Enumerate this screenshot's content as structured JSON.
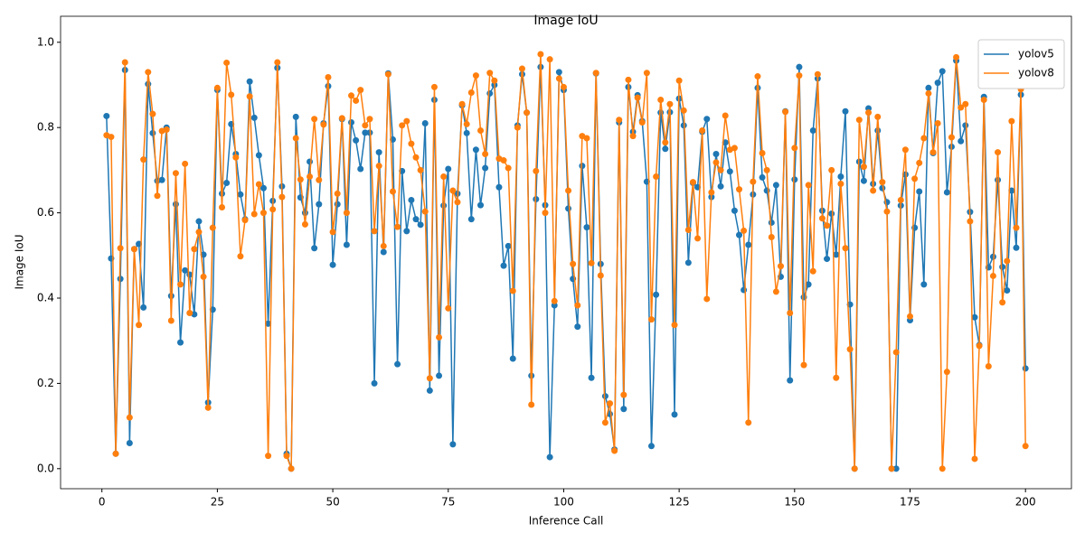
{
  "chart_data": {
    "type": "line",
    "title": "Image IoU",
    "x_label": "Inference Call",
    "y_label": "Image IoU",
    "x": [
      1,
      2,
      3,
      4,
      5,
      6,
      7,
      8,
      9,
      10,
      11,
      12,
      13,
      14,
      15,
      16,
      17,
      18,
      19,
      20,
      21,
      22,
      23,
      24,
      25,
      26,
      27,
      28,
      29,
      30,
      31,
      32,
      33,
      34,
      35,
      36,
      37,
      38,
      39,
      40,
      41,
      42,
      43,
      44,
      45,
      46,
      47,
      48,
      49,
      50,
      51,
      52,
      53,
      54,
      55,
      56,
      57,
      58,
      59,
      60,
      61,
      62,
      63,
      64,
      65,
      66,
      67,
      68,
      69,
      70,
      71,
      72,
      73,
      74,
      75,
      76,
      77,
      78,
      79,
      80,
      81,
      82,
      83,
      84,
      85,
      86,
      87,
      88,
      89,
      90,
      91,
      92,
      93,
      94,
      95,
      96,
      97,
      98,
      99,
      100,
      101,
      102,
      103,
      104,
      105,
      106,
      107,
      108,
      109,
      110,
      111,
      112,
      113,
      114,
      115,
      116,
      117,
      118,
      119,
      120,
      121,
      122,
      123,
      124,
      125,
      126,
      127,
      128,
      129,
      130,
      131,
      132,
      133,
      134,
      135,
      136,
      137,
      138,
      139,
      140,
      141,
      142,
      143,
      144,
      145,
      146,
      147,
      148,
      149,
      150,
      151,
      152,
      153,
      154,
      155,
      156,
      157,
      158,
      159,
      160,
      161,
      162,
      163,
      164,
      165,
      166,
      167,
      168,
      169,
      170,
      171,
      172,
      173,
      174,
      175,
      176,
      177,
      178,
      179,
      180,
      181,
      182,
      183,
      184,
      185,
      186,
      187,
      188,
      189,
      190,
      191,
      192,
      193,
      194,
      195,
      196,
      197,
      198,
      199,
      200
    ],
    "series": [
      {
        "name": "yolov5",
        "color": "#1f77b4",
        "values": [
          0.827,
          0.493,
          0.035,
          0.445,
          0.935,
          0.06,
          0.515,
          0.527,
          0.378,
          0.902,
          0.787,
          0.675,
          0.677,
          0.8,
          0.405,
          0.62,
          0.296,
          0.465,
          0.455,
          0.362,
          0.58,
          0.502,
          0.155,
          0.373,
          0.888,
          0.645,
          0.67,
          0.808,
          0.738,
          0.643,
          0.585,
          0.908,
          0.823,
          0.735,
          0.658,
          0.34,
          0.628,
          0.94,
          0.662,
          0.035,
          0.0,
          0.825,
          0.636,
          0.6,
          0.72,
          0.517,
          0.62,
          0.81,
          0.897,
          0.478,
          0.62,
          0.82,
          0.525,
          0.812,
          0.77,
          0.703,
          0.788,
          0.788,
          0.2,
          0.742,
          0.508,
          0.927,
          0.772,
          0.245,
          0.698,
          0.557,
          0.63,
          0.585,
          0.572,
          0.81,
          0.183,
          0.865,
          0.218,
          0.617,
          0.703,
          0.057,
          0.645,
          0.852,
          0.787,
          0.585,
          0.748,
          0.618,
          0.705,
          0.88,
          0.9,
          0.66,
          0.476,
          0.522,
          0.258,
          0.805,
          0.925,
          0.835,
          0.218,
          0.632,
          0.942,
          0.618,
          0.027,
          0.383,
          0.93,
          0.888,
          0.61,
          0.445,
          0.333,
          0.71,
          0.566,
          0.213,
          0.927,
          0.48,
          0.17,
          0.128,
          0.045,
          0.812,
          0.14,
          0.895,
          0.79,
          0.876,
          0.815,
          0.673,
          0.053,
          0.408,
          0.835,
          0.75,
          0.836,
          0.127,
          0.868,
          0.805,
          0.483,
          0.67,
          0.66,
          0.79,
          0.82,
          0.637,
          0.738,
          0.662,
          0.765,
          0.697,
          0.605,
          0.548,
          0.419,
          0.525,
          0.643,
          0.893,
          0.683,
          0.652,
          0.577,
          0.665,
          0.45,
          0.838,
          0.207,
          0.678,
          0.942,
          0.402,
          0.432,
          0.793,
          0.915,
          0.605,
          0.492,
          0.598,
          0.502,
          0.685,
          0.838,
          0.385,
          0.0,
          0.72,
          0.675,
          0.845,
          0.668,
          0.793,
          0.658,
          0.625,
          0.0,
          0.0,
          0.617,
          0.69,
          0.348,
          0.565,
          0.65,
          0.432,
          0.893,
          0.74,
          0.905,
          0.932,
          0.648,
          0.755,
          0.957,
          0.768,
          0.805,
          0.602,
          0.355,
          0.29,
          0.872,
          0.472,
          0.497,
          0.677,
          0.473,
          0.418,
          0.652,
          0.518,
          0.877,
          0.235
        ]
      },
      {
        "name": "yolov8",
        "color": "#ff7f0e",
        "values": [
          0.782,
          0.778,
          0.035,
          0.517,
          0.953,
          0.12,
          0.515,
          0.337,
          0.725,
          0.93,
          0.832,
          0.64,
          0.792,
          0.795,
          0.347,
          0.693,
          0.432,
          0.715,
          0.365,
          0.515,
          0.555,
          0.45,
          0.143,
          0.565,
          0.893,
          0.613,
          0.952,
          0.877,
          0.73,
          0.498,
          0.583,
          0.873,
          0.597,
          0.667,
          0.6,
          0.03,
          0.608,
          0.953,
          0.637,
          0.03,
          0.0,
          0.775,
          0.678,
          0.573,
          0.685,
          0.82,
          0.677,
          0.807,
          0.918,
          0.555,
          0.645,
          0.822,
          0.6,
          0.875,
          0.863,
          0.888,
          0.805,
          0.82,
          0.557,
          0.71,
          0.522,
          0.925,
          0.65,
          0.567,
          0.805,
          0.815,
          0.762,
          0.73,
          0.7,
          0.603,
          0.212,
          0.895,
          0.308,
          0.685,
          0.376,
          0.652,
          0.625,
          0.855,
          0.808,
          0.882,
          0.922,
          0.793,
          0.738,
          0.928,
          0.91,
          0.727,
          0.723,
          0.705,
          0.417,
          0.8,
          0.938,
          0.835,
          0.15,
          0.698,
          0.972,
          0.6,
          0.96,
          0.393,
          0.915,
          0.895,
          0.652,
          0.48,
          0.383,
          0.78,
          0.775,
          0.482,
          0.928,
          0.453,
          0.108,
          0.153,
          0.042,
          0.818,
          0.173,
          0.912,
          0.78,
          0.87,
          0.812,
          0.928,
          0.35,
          0.685,
          0.865,
          0.765,
          0.855,
          0.337,
          0.91,
          0.84,
          0.56,
          0.672,
          0.54,
          0.793,
          0.398,
          0.648,
          0.718,
          0.7,
          0.828,
          0.748,
          0.752,
          0.655,
          0.558,
          0.108,
          0.673,
          0.92,
          0.74,
          0.7,
          0.543,
          0.415,
          0.475,
          0.837,
          0.365,
          0.752,
          0.922,
          0.243,
          0.665,
          0.463,
          0.925,
          0.587,
          0.57,
          0.7,
          0.213,
          0.668,
          0.517,
          0.28,
          0.0,
          0.818,
          0.708,
          0.835,
          0.652,
          0.825,
          0.672,
          0.603,
          0.0,
          0.273,
          0.63,
          0.748,
          0.357,
          0.68,
          0.717,
          0.775,
          0.88,
          0.742,
          0.81,
          0.0,
          0.227,
          0.777,
          0.965,
          0.847,
          0.855,
          0.58,
          0.023,
          0.288,
          0.865,
          0.24,
          0.452,
          0.742,
          0.39,
          0.487,
          0.815,
          0.565,
          0.89,
          0.053
        ]
      }
    ],
    "xlim": [
      -8.95,
      209.95
    ],
    "ylim": [
      -0.047,
      1.061
    ],
    "xticks": [
      0,
      25,
      50,
      75,
      100,
      125,
      150,
      175,
      200
    ],
    "yticks": [
      {
        "value": 0,
        "label": "0.0"
      },
      0.2,
      0.4,
      0.6,
      0.8,
      {
        "value": 1,
        "label": "1.0"
      }
    ],
    "grid": false,
    "legend": "upper right",
    "markers": true
  }
}
